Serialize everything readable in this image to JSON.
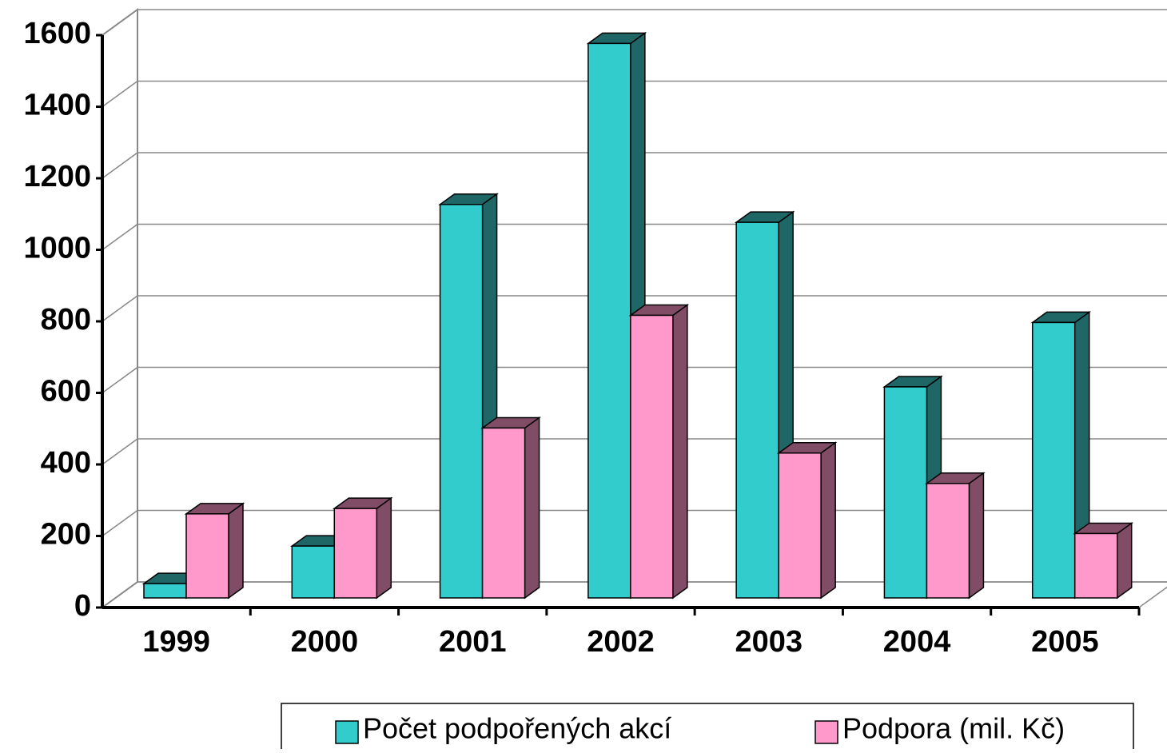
{
  "chart_data": {
    "type": "bar3d",
    "categories": [
      "1999",
      "2000",
      "2001",
      "2002",
      "2003",
      "2004",
      "2005"
    ],
    "series": [
      {
        "name": "Počet podpořených akcí",
        "color": "#33cccc",
        "side": "#1f6666",
        "values": [
          40,
          145,
          1100,
          1550,
          1050,
          590,
          770
        ]
      },
      {
        "name": "Podpora (mil. Kč)",
        "color": "#ff99cc",
        "side": "#804c66",
        "values": [
          235,
          250,
          475,
          790,
          405,
          320,
          180
        ]
      }
    ],
    "ylim": [
      0,
      1600
    ],
    "yticks": [
      0,
      200,
      400,
      600,
      800,
      1000,
      1200,
      1400,
      1600
    ],
    "grid": true
  }
}
